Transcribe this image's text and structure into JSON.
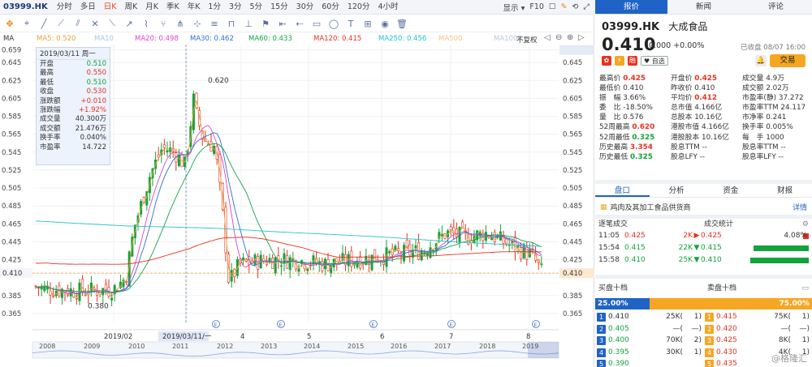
{
  "header": {
    "ticker": "03999.HK",
    "periods": [
      "分时",
      "多日",
      "日K",
      "周K",
      "月K",
      "季K",
      "年K",
      "1分",
      "3分",
      "5分",
      "15分",
      "30分",
      "60分",
      "120分",
      "4小时"
    ],
    "active_period": "日K",
    "display_label": "显示",
    "f10_label": "F10"
  },
  "ma_legend": [
    {
      "label": "MA",
      "color": "#333333"
    },
    {
      "label": "MA5: 0.520",
      "color": "#e8a33c"
    },
    {
      "label": "MA10",
      "color": "#a9c6e6"
    },
    {
      "label": "MA20: 0.498",
      "color": "#d648c8"
    },
    {
      "label": "MA30: 0.462",
      "color": "#2f6fd6"
    },
    {
      "label": "MA60: 0.433",
      "color": "#17a34a"
    },
    {
      "label": "MA120: 0.415",
      "color": "#e8311f"
    },
    {
      "label": "MA250: 0.456",
      "color": "#26c2c8"
    },
    {
      "label": "MA500",
      "color": "#f3c58c"
    },
    {
      "label": "MA1000",
      "color": "#b9c7e0"
    }
  ],
  "adjust_label": "不复权",
  "tooltip": {
    "date": "2019/03/11 周一",
    "rows": [
      {
        "k": "开盘",
        "v": "0.510"
      },
      {
        "k": "最高",
        "v": "0.550"
      },
      {
        "k": "最低",
        "v": "0.510"
      },
      {
        "k": "收盘",
        "v": "0.530"
      },
      {
        "k": "涨跌额",
        "v": "+0.010"
      },
      {
        "k": "涨跌幅",
        "v": "+1.92%"
      },
      {
        "k": "成交量",
        "v": "40.300万"
      },
      {
        "k": "成交额",
        "v": "21.476万"
      },
      {
        "k": "换手率",
        "v": "0.040%"
      },
      {
        "k": "市盈率",
        "v": "14.722"
      }
    ]
  },
  "chart_data": {
    "type": "candlestick",
    "y_ticks": [
      "0.659",
      "0.645",
      "0.625",
      "0.605",
      "0.585",
      "0.565",
      "0.545",
      "0.525",
      "0.505",
      "0.485",
      "0.465",
      "0.445",
      "0.425",
      "0.410",
      "0.385",
      "0.365"
    ],
    "ylim": [
      0.355,
      0.665
    ],
    "high_label": "0.620",
    "low_label": "0.380",
    "current_price_line": "0.410",
    "x_month_labels": [
      "2019/02",
      "2019/03/11/一",
      "4",
      "5",
      "6",
      "7",
      "8"
    ],
    "navigator_years": [
      "2008",
      "2009",
      "2010",
      "2011",
      "2012",
      "2013",
      "2014",
      "2015",
      "2016",
      "2017",
      "2018",
      "2019"
    ],
    "event_markers": 5
  },
  "right": {
    "tabs": [
      "报价",
      "新闻",
      "评论"
    ],
    "active_tab": "报价",
    "code": "03999.HK",
    "name": "大成食品",
    "price": "0.410",
    "change": "0.000 +0.00%",
    "status": "已收盘 08/07 16:00",
    "watch_label": "自选",
    "trade_label": "交易",
    "quote_grid": [
      [
        {
          "k": "最高价",
          "v": "0.425",
          "c": "red"
        },
        {
          "k": "开盘价",
          "v": "0.425",
          "c": "red"
        },
        {
          "k": "成交量",
          "v": "4.9万",
          "c": "blk"
        }
      ],
      [
        {
          "k": "最低价",
          "v": "0.410",
          "c": "blk"
        },
        {
          "k": "昨收价",
          "v": "0.410",
          "c": "blk"
        },
        {
          "k": "成交额",
          "v": "2.02万",
          "c": "blk"
        }
      ],
      [
        {
          "k": "振　幅",
          "v": "3.66%",
          "c": "blk"
        },
        {
          "k": "平均价",
          "v": "0.412",
          "c": "red"
        },
        {
          "k": "市盈率(静)",
          "v": "37.272",
          "c": "blk"
        }
      ],
      [
        {
          "k": "委　比",
          "v": "-18.50%",
          "c": "blk"
        },
        {
          "k": "总市值",
          "v": "4.166亿",
          "c": "blk"
        },
        {
          "k": "市盈率TTM",
          "v": "24.117",
          "c": "blk"
        }
      ],
      [
        {
          "k": "量　比",
          "v": "0.576",
          "c": "blk"
        },
        {
          "k": "总股本",
          "v": "10.16亿",
          "c": "blk"
        },
        {
          "k": "市净率",
          "v": "0.241",
          "c": "blk"
        }
      ],
      [
        {
          "k": "52周最高",
          "v": "0.620",
          "c": "red"
        },
        {
          "k": "港股市值",
          "v": "4.166亿",
          "c": "blk"
        },
        {
          "k": "换手率",
          "v": "0.005%",
          "c": "blk"
        }
      ],
      [
        {
          "k": "52周最低",
          "v": "0.325",
          "c": "green"
        },
        {
          "k": "港股股本",
          "v": "10.16亿",
          "c": "blk"
        },
        {
          "k": "每　手",
          "v": "1000",
          "c": "blk"
        }
      ],
      [
        {
          "k": "历史最高",
          "v": "3.354",
          "c": "red"
        },
        {
          "k": "股息TTM",
          "v": "--",
          "c": "blk"
        },
        {
          "k": "股息率TTM",
          "v": "--",
          "c": "blk"
        }
      ],
      [
        {
          "k": "历史最低",
          "v": "0.325",
          "c": "green"
        },
        {
          "k": "股息LFY",
          "v": "--",
          "c": "blk"
        },
        {
          "k": "股息率LFY",
          "v": "--",
          "c": "blk"
        }
      ]
    ],
    "panel_tabs": [
      "盘口",
      "分析",
      "资金",
      "财报"
    ],
    "active_panel_tab": "盘口",
    "industry": "鸡肉及其加工食品供货商",
    "industry_more": "详情",
    "ticks_title": "逐笔成交",
    "stats_title": "成交统计",
    "ticks": [
      {
        "time": "11:05",
        "price": "0.425",
        "vol": "2K",
        "dir": "▶",
        "p2": "0.425",
        "pct": "4.08%",
        "color": "red",
        "bar": 0.1,
        "barcolor": "#e8311f"
      },
      {
        "time": "15:54",
        "price": "0.415",
        "vol": "22K",
        "dir": "▼",
        "p2": "0.415",
        "pct": "",
        "color": "green",
        "bar": 0.95,
        "barcolor": "#14a23c"
      },
      {
        "time": "15:58",
        "price": "0.410",
        "vol": "25K",
        "dir": "▼",
        "p2": "0.410",
        "pct": "",
        "color": "green",
        "bar": 1.0,
        "barcolor": "#14a23c"
      }
    ],
    "book_bid_title": "买盘十档",
    "book_ask_title": "卖盘十档",
    "bid_pct": "25.00%",
    "ask_pct": "75.00%",
    "book": [
      {
        "n": "1",
        "bp": "0.410",
        "bv": "25K(",
        "bc": "1)",
        "ap": "0.415",
        "av": "75K(",
        "ac": "1)"
      },
      {
        "n": "2",
        "bp": "0.405",
        "bv": "—(",
        "bc": "—)",
        "ap": "0.420",
        "av": "—(",
        "ac": "—)"
      },
      {
        "n": "3",
        "bp": "0.400",
        "bv": "70K(",
        "bc": "2)",
        "ap": "0.425",
        "av": "8K(",
        "ac": "1)"
      },
      {
        "n": "4",
        "bp": "0.395",
        "bv": "30K(",
        "bc": "1)",
        "ap": "0.430",
        "av": "4K(",
        "ac": "1)"
      },
      {
        "n": "5",
        "bp": "0.390",
        "bv": "",
        "bc": "",
        "ap": "0.435",
        "av": "",
        "ac": ""
      }
    ],
    "watermark": "@格隆汇"
  }
}
